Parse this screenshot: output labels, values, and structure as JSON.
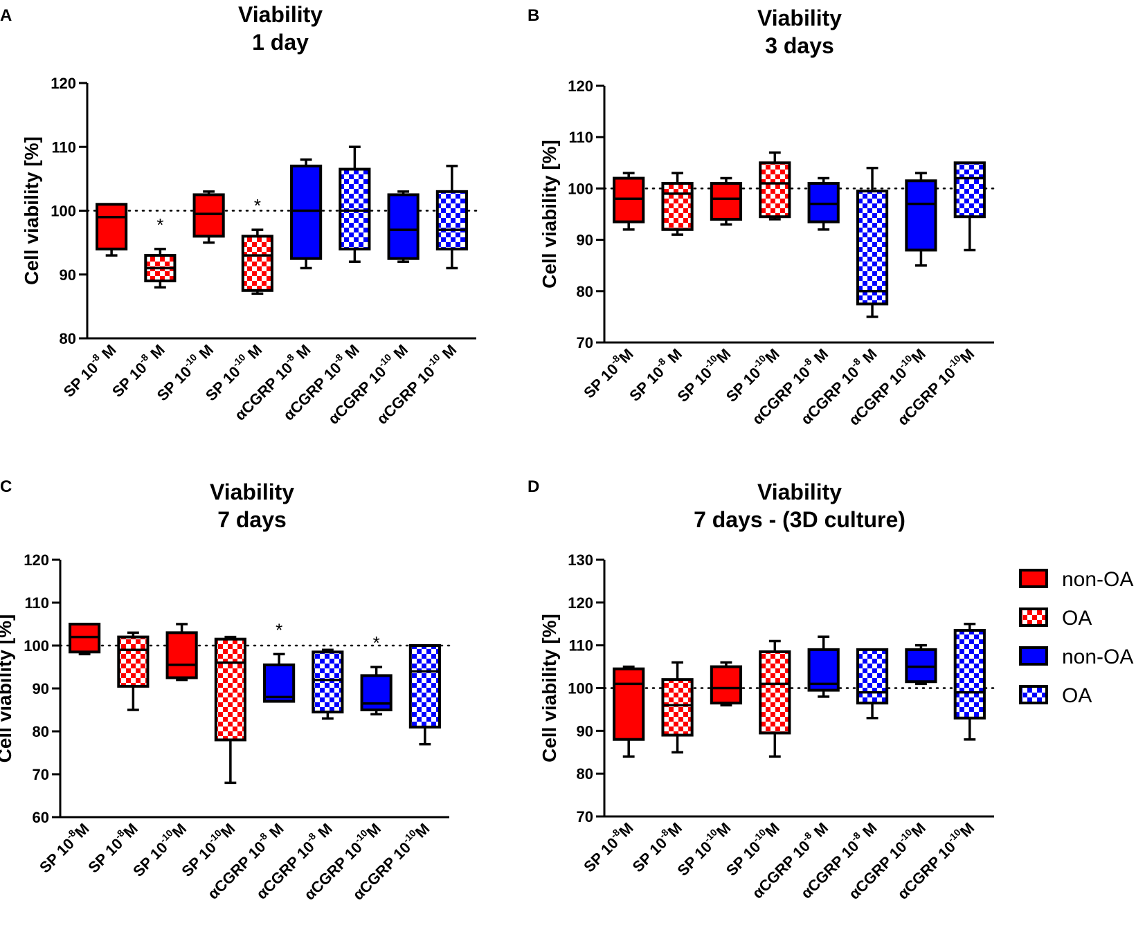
{
  "chart_data": [
    {
      "type": "box",
      "panel": "A",
      "title": [
        "Viability",
        "1 day"
      ],
      "ylabel": "Cell viability [%]",
      "ylim": [
        80,
        120
      ],
      "yticks": [
        80,
        90,
        100,
        110,
        120
      ],
      "reference_line": 100,
      "categories": [
        {
          "base": "SP 10",
          "exp": "-8",
          "unit": " M"
        },
        {
          "base": "SP 10",
          "exp": "-8",
          "unit": " M"
        },
        {
          "base": "SP 10",
          "exp": "-10",
          "unit": " M"
        },
        {
          "base": "SP 10",
          "exp": "-10",
          "unit": " M"
        },
        {
          "base": "αCGRP 10",
          "exp": "-8",
          "unit": " M"
        },
        {
          "base": "αCGRP 10",
          "exp": "-8",
          "unit": " M"
        },
        {
          "base": "αCGRP 10",
          "exp": "-10",
          "unit": " M"
        },
        {
          "base": "αCGRP 10",
          "exp": "-10",
          "unit": " M"
        }
      ],
      "series_style": [
        "non-OA-red",
        "OA-red",
        "non-OA-red",
        "OA-red",
        "non-OA-blue",
        "OA-blue",
        "non-OA-blue",
        "OA-blue"
      ],
      "boxes": [
        {
          "min": 93,
          "q1": 94,
          "median": 99,
          "q3": 101,
          "max": 101
        },
        {
          "min": 88,
          "q1": 89,
          "median": 91,
          "q3": 93,
          "max": 94
        },
        {
          "min": 95,
          "q1": 96,
          "median": 99.5,
          "q3": 102.5,
          "max": 103
        },
        {
          "min": 87,
          "q1": 87.5,
          "median": 93,
          "q3": 96,
          "max": 97
        },
        {
          "min": 91,
          "q1": 92.5,
          "median": 100,
          "q3": 107,
          "max": 108
        },
        {
          "min": 92,
          "q1": 94,
          "median": 100,
          "q3": 106.5,
          "max": 110
        },
        {
          "min": 92,
          "q1": 92.5,
          "median": 97,
          "q3": 102.5,
          "max": 103
        },
        {
          "min": 91,
          "q1": 94,
          "median": 97,
          "q3": 103,
          "max": 107
        }
      ],
      "significance": [
        "",
        "*",
        "",
        "*",
        "",
        "",
        "",
        ""
      ]
    },
    {
      "type": "box",
      "panel": "B",
      "title": [
        "Viability",
        "3 days"
      ],
      "ylabel": "Cell viability [%]",
      "ylim": [
        70,
        120
      ],
      "yticks": [
        70,
        80,
        90,
        100,
        110,
        120
      ],
      "reference_line": 100,
      "categories": [
        {
          "base": "SP 10",
          "exp": "-8",
          "unit": "M"
        },
        {
          "base": "SP 10",
          "exp": "-8",
          "unit": " M"
        },
        {
          "base": "SP 10",
          "exp": "-10",
          "unit": "M"
        },
        {
          "base": "SP 10",
          "exp": "-10",
          "unit": "M"
        },
        {
          "base": "αCGRP 10",
          "exp": "-8",
          "unit": " M"
        },
        {
          "base": "αCGRP 10",
          "exp": "-8",
          "unit": " M"
        },
        {
          "base": "αCGRP 10",
          "exp": "-10",
          "unit": "M"
        },
        {
          "base": "αCGRP 10",
          "exp": "-10",
          "unit": "M"
        }
      ],
      "series_style": [
        "non-OA-red",
        "OA-red",
        "non-OA-red",
        "OA-red",
        "non-OA-blue",
        "OA-blue",
        "non-OA-blue",
        "OA-blue"
      ],
      "boxes": [
        {
          "min": 92,
          "q1": 93.5,
          "median": 98,
          "q3": 102,
          "max": 103
        },
        {
          "min": 91,
          "q1": 92,
          "median": 99,
          "q3": 101,
          "max": 103
        },
        {
          "min": 93,
          "q1": 94,
          "median": 98,
          "q3": 101,
          "max": 102
        },
        {
          "min": 94,
          "q1": 94.5,
          "median": 101,
          "q3": 105,
          "max": 107
        },
        {
          "min": 92,
          "q1": 93.5,
          "median": 97,
          "q3": 101,
          "max": 102
        },
        {
          "min": 75,
          "q1": 77.5,
          "median": 80,
          "q3": 99.5,
          "max": 104
        },
        {
          "min": 85,
          "q1": 88,
          "median": 97,
          "q3": 101.5,
          "max": 103
        },
        {
          "min": 88,
          "q1": 94.5,
          "median": 102,
          "q3": 105,
          "max": 105
        }
      ],
      "significance": [
        "",
        "",
        "",
        "",
        "",
        "",
        "",
        ""
      ]
    },
    {
      "type": "box",
      "panel": "C",
      "title": [
        "Viability",
        "7 days"
      ],
      "ylabel": "Cell viability [%]",
      "ylim": [
        60,
        120
      ],
      "yticks": [
        60,
        70,
        80,
        90,
        100,
        110,
        120
      ],
      "reference_line": 100,
      "categories": [
        {
          "base": "SP 10",
          "exp": "-8",
          "unit": "M"
        },
        {
          "base": "SP 10",
          "exp": "-8",
          "unit": "M"
        },
        {
          "base": "SP 10",
          "exp": "-10",
          "unit": "M"
        },
        {
          "base": "SP 10",
          "exp": "-10",
          "unit": "M"
        },
        {
          "base": "αCGRP 10",
          "exp": "-8",
          "unit": " M"
        },
        {
          "base": "αCGRP 10",
          "exp": "-8",
          "unit": " M"
        },
        {
          "base": "αCGRP 10",
          "exp": "-10",
          "unit": "M"
        },
        {
          "base": "αCGRP 10",
          "exp": "-10",
          "unit": "M"
        }
      ],
      "series_style": [
        "non-OA-red",
        "OA-red",
        "non-OA-red",
        "OA-red",
        "non-OA-blue",
        "OA-blue",
        "non-OA-blue",
        "OA-blue"
      ],
      "boxes": [
        {
          "min": 98,
          "q1": 98.5,
          "median": 102,
          "q3": 105,
          "max": 105
        },
        {
          "min": 85,
          "q1": 90.5,
          "median": 99,
          "q3": 102,
          "max": 103
        },
        {
          "min": 92,
          "q1": 92.5,
          "median": 95.5,
          "q3": 103,
          "max": 105
        },
        {
          "min": 68,
          "q1": 78,
          "median": 96,
          "q3": 101.5,
          "max": 102
        },
        {
          "min": 87,
          "q1": 87,
          "median": 88,
          "q3": 95.5,
          "max": 98
        },
        {
          "min": 83,
          "q1": 84.5,
          "median": 92,
          "q3": 98.5,
          "max": 99
        },
        {
          "min": 84,
          "q1": 85,
          "median": 86.5,
          "q3": 93,
          "max": 95
        },
        {
          "min": 77,
          "q1": 81,
          "median": 94,
          "q3": 100,
          "max": 100
        }
      ],
      "significance": [
        "",
        "",
        "",
        "",
        "*",
        "",
        "*",
        ""
      ]
    },
    {
      "type": "box",
      "panel": "D",
      "title": [
        "Viability",
        "7 days - (3D culture)"
      ],
      "ylabel": "Cell viability [%]",
      "ylim": [
        70,
        130
      ],
      "yticks": [
        70,
        80,
        90,
        100,
        110,
        120,
        130
      ],
      "reference_line": 100,
      "categories": [
        {
          "base": "SP 10",
          "exp": "-8",
          "unit": "M"
        },
        {
          "base": "SP 10",
          "exp": "-8",
          "unit": "M"
        },
        {
          "base": "SP 10",
          "exp": "-10",
          "unit": "M"
        },
        {
          "base": "SP 10",
          "exp": "-10",
          "unit": "M"
        },
        {
          "base": "αCGRP 10",
          "exp": "-8",
          "unit": " M"
        },
        {
          "base": "αCGRP 10",
          "exp": "-8",
          "unit": " M"
        },
        {
          "base": "αCGRP 10",
          "exp": "-10",
          "unit": "M"
        },
        {
          "base": "αCGRP 10",
          "exp": "-10",
          "unit": "M"
        }
      ],
      "series_style": [
        "non-OA-red",
        "OA-red",
        "non-OA-red",
        "OA-red",
        "non-OA-blue",
        "OA-blue",
        "non-OA-blue",
        "OA-blue"
      ],
      "boxes": [
        {
          "min": 84,
          "q1": 88,
          "median": 101,
          "q3": 104.5,
          "max": 105
        },
        {
          "min": 85,
          "q1": 89,
          "median": 96,
          "q3": 102,
          "max": 106
        },
        {
          "min": 96,
          "q1": 96.5,
          "median": 100,
          "q3": 105,
          "max": 106
        },
        {
          "min": 84,
          "q1": 89.5,
          "median": 101,
          "q3": 108.5,
          "max": 111
        },
        {
          "min": 98,
          "q1": 99.5,
          "median": 101,
          "q3": 109,
          "max": 112
        },
        {
          "min": 93,
          "q1": 96.5,
          "median": 99,
          "q3": 109,
          "max": 109
        },
        {
          "min": 101,
          "q1": 101.5,
          "median": 105,
          "q3": 109,
          "max": 110
        },
        {
          "min": 88,
          "q1": 93,
          "median": 99,
          "q3": 113.5,
          "max": 115
        }
      ],
      "significance": [
        "",
        "",
        "",
        "",
        "",
        "",
        "",
        ""
      ]
    }
  ],
  "legend": {
    "position": "right-of-panel-D",
    "items": [
      {
        "label": "non-OA",
        "style": "non-OA-red"
      },
      {
        "label": "OA",
        "style": "OA-red"
      },
      {
        "label": "non-OA",
        "style": "non-OA-blue"
      },
      {
        "label": "OA",
        "style": "OA-blue"
      }
    ]
  },
  "colors": {
    "red": "#ff0000",
    "blue": "#0000ff",
    "line": "#000000",
    "checker_light": "#ffffff"
  }
}
